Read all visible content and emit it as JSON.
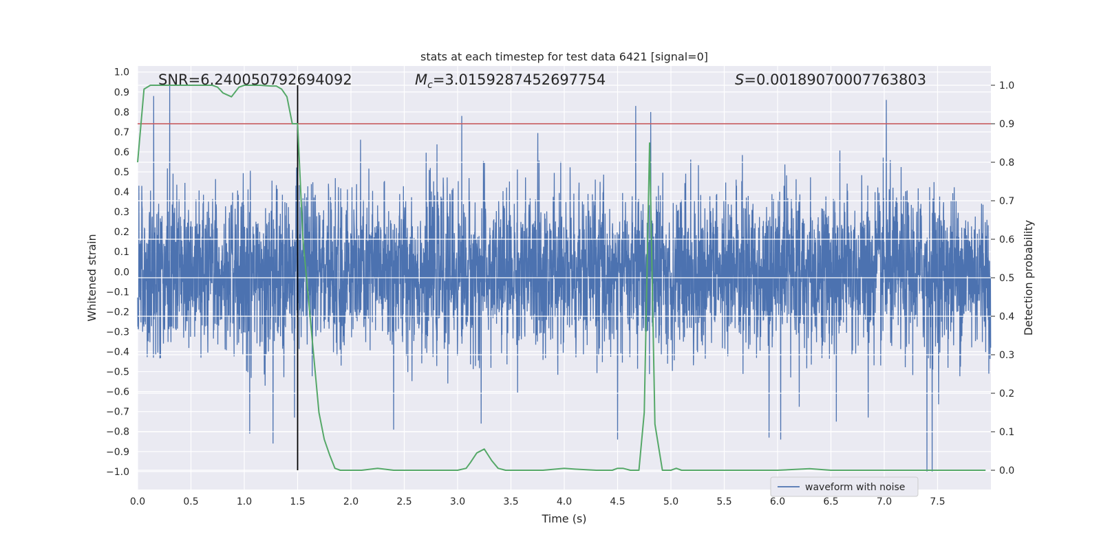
{
  "chart_data": {
    "type": "line",
    "title": "stats at each timestep for test data 6421 [signal=0]",
    "xlabel": "Time (s)",
    "ylabel_left": "Whitened strain",
    "ylabel_right": "Detection probability",
    "xlim": [
      0.0,
      8.0
    ],
    "ylim_left": [
      -1.09,
      1.03
    ],
    "ylim_right": [
      -0.05,
      1.05
    ],
    "x_ticks": [
      "0.0",
      "0.5",
      "1.0",
      "1.5",
      "2.0",
      "2.5",
      "3.0",
      "3.5",
      "4.0",
      "4.5",
      "5.0",
      "5.5",
      "6.0",
      "6.5",
      "7.0",
      "7.5"
    ],
    "x_tick_values": [
      0,
      0.5,
      1,
      1.5,
      2,
      2.5,
      3,
      3.5,
      4,
      4.5,
      5,
      5.5,
      6,
      6.5,
      7,
      7.5
    ],
    "y_left_ticks": [
      "1.0",
      "0.9",
      "0.8",
      "0.7",
      "0.6",
      "0.5",
      "0.4",
      "0.3",
      "0.2",
      "0.1",
      "0.0",
      "−0.1",
      "−0.2",
      "−0.3",
      "−0.4",
      "−0.5",
      "−0.6",
      "−0.7",
      "−0.8",
      "−0.9",
      "−1.0"
    ],
    "y_left_tick_values": [
      1.0,
      0.9,
      0.8,
      0.7,
      0.6,
      0.5,
      0.4,
      0.3,
      0.2,
      0.1,
      0.0,
      -0.1,
      -0.2,
      -0.3,
      -0.4,
      -0.5,
      -0.6,
      -0.7,
      -0.8,
      -0.9,
      -1.0
    ],
    "y_right_ticks": [
      "1.0",
      "0.9",
      "0.8",
      "0.7",
      "0.6",
      "0.5",
      "0.4",
      "0.3",
      "0.2",
      "0.1",
      "0.0"
    ],
    "y_right_tick_values": [
      1.0,
      0.9,
      0.8,
      0.7,
      0.6,
      0.5,
      0.4,
      0.3,
      0.2,
      0.1,
      0.0
    ],
    "annotations": {
      "snr": "SNR=6.240050792694092",
      "mc_prefix": "M",
      "mc_sub": "c",
      "mc_value": "=3.0159287452697754",
      "s_prefix": "S",
      "s_value": "=0.00189070007763803"
    },
    "legend": {
      "label": "waveform with noise",
      "position": "lower-right"
    },
    "series": [
      {
        "name": "waveform with noise",
        "axis": "left",
        "color": "#4c72b0",
        "note": "dense whitened-strain noise, approx 4096 samples, amplitude mostly within ±0.5 with peaks up to about ±0.95",
        "sample_rate": 512,
        "spikes": [
          {
            "t": 0.15,
            "v": 0.88
          },
          {
            "t": 0.3,
            "v": 0.95
          },
          {
            "t": 1.05,
            "v": -0.81
          },
          {
            "t": 1.27,
            "v": -0.86
          },
          {
            "t": 1.47,
            "v": -0.73
          },
          {
            "t": 2.4,
            "v": -0.79
          },
          {
            "t": 3.04,
            "v": 0.78
          },
          {
            "t": 3.22,
            "v": -0.76
          },
          {
            "t": 4.5,
            "v": -0.84
          },
          {
            "t": 4.67,
            "v": 0.83
          },
          {
            "t": 4.81,
            "v": 0.8
          },
          {
            "t": 5.92,
            "v": -0.83
          },
          {
            "t": 6.03,
            "v": -0.84
          },
          {
            "t": 6.55,
            "v": -0.75
          },
          {
            "t": 7.02,
            "v": 0.86
          },
          {
            "t": 7.4,
            "v": -1.0
          },
          {
            "t": 7.45,
            "v": -1.0
          },
          {
            "t": 6.85,
            "v": -0.73
          }
        ]
      },
      {
        "name": "detection probability",
        "axis": "right",
        "color": "#55a868",
        "x": [
          0.0,
          0.06,
          0.12,
          0.2,
          0.35,
          0.5,
          0.6,
          0.7,
          0.75,
          0.8,
          0.88,
          0.95,
          1.0,
          1.05,
          1.15,
          1.25,
          1.3,
          1.35,
          1.4,
          1.45,
          1.5,
          1.55,
          1.6,
          1.65,
          1.7,
          1.75,
          1.8,
          1.85,
          1.9,
          2.0,
          2.1,
          2.25,
          2.4,
          2.6,
          2.8,
          3.0,
          3.08,
          3.12,
          3.18,
          3.25,
          3.32,
          3.38,
          3.45,
          3.6,
          3.8,
          4.0,
          4.1,
          4.3,
          4.45,
          4.5,
          4.55,
          4.62,
          4.7,
          4.75,
          4.8,
          4.85,
          4.92,
          5.0,
          5.05,
          5.1,
          5.2,
          5.5,
          6.0,
          6.3,
          6.5,
          7.0,
          7.3,
          7.5,
          7.95
        ],
        "values": [
          0.8,
          0.99,
          1.0,
          1.0,
          1.0,
          1.0,
          1.0,
          1.0,
          0.995,
          0.98,
          0.97,
          0.995,
          1.0,
          1.0,
          1.0,
          0.998,
          0.998,
          0.99,
          0.97,
          0.9,
          0.9,
          0.6,
          0.45,
          0.3,
          0.15,
          0.08,
          0.04,
          0.005,
          0.0,
          0.0,
          0.0,
          0.005,
          0.0,
          0.0,
          0.0,
          0.0,
          0.005,
          0.02,
          0.045,
          0.055,
          0.025,
          0.005,
          0.0,
          0.0,
          0.0,
          0.005,
          0.003,
          0.0,
          0.0,
          0.005,
          0.005,
          0.0,
          0.0,
          0.15,
          0.85,
          0.12,
          0.0,
          0.0,
          0.005,
          0.0,
          0.0,
          0.0,
          0.0,
          0.004,
          0.0,
          0.0,
          0.0,
          0.0,
          0.0
        ]
      },
      {
        "name": "threshold",
        "axis": "right",
        "color": "#c44e52",
        "value": 0.9
      },
      {
        "name": "marker",
        "axis": "right",
        "color": "#000000",
        "x": 1.5,
        "from": 0.0,
        "to": 1.0
      }
    ]
  }
}
